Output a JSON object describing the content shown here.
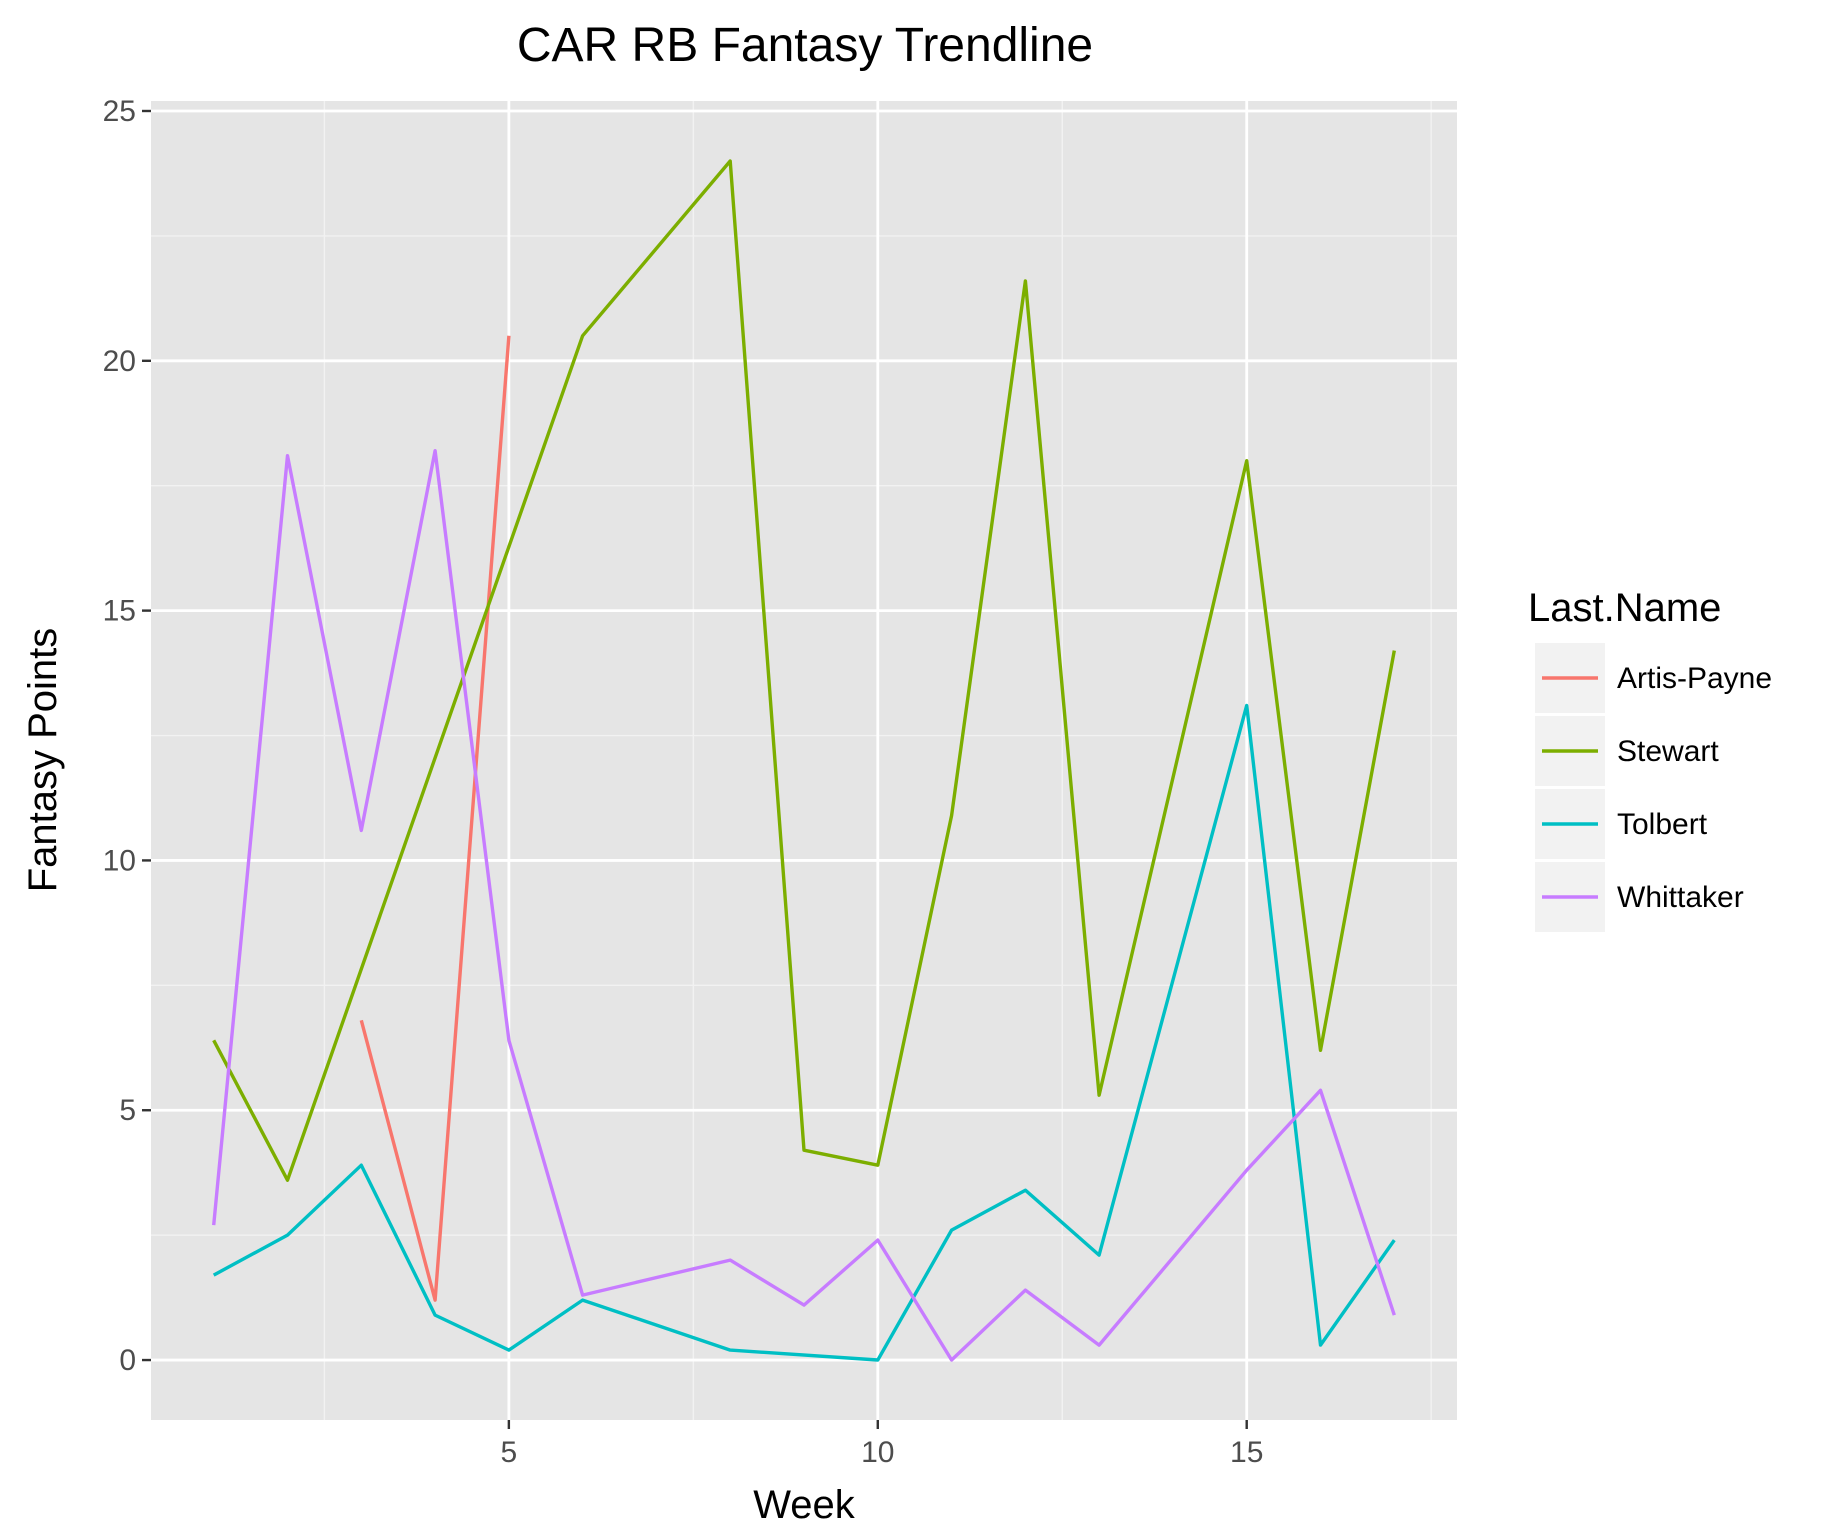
{
  "chart_data": {
    "type": "line",
    "title": "CAR RB Fantasy Trendline",
    "xlabel": "Week",
    "ylabel": "Fantasy Points",
    "xlim": [
      0.15,
      17.85
    ],
    "ylim": [
      -1.2,
      25.2
    ],
    "x_ticks": [
      5,
      10,
      15
    ],
    "x_tick_labels": [
      "5",
      "10",
      "15"
    ],
    "x_minor_grid": [
      2.5,
      7.5,
      12.5,
      17.5
    ],
    "y_ticks": [
      0,
      5,
      10,
      15,
      20,
      25
    ],
    "y_tick_labels": [
      "0",
      "5",
      "10",
      "15",
      "20",
      "25"
    ],
    "y_minor_grid": [
      2.5,
      7.5,
      12.5,
      17.5,
      22.5
    ],
    "grid": true,
    "legend": {
      "title": "Last.Name",
      "placement": "right"
    },
    "series": [
      {
        "name": "Artis-Payne",
        "color": "#F8766D",
        "points": [
          [
            3,
            6.8
          ],
          [
            4,
            1.2
          ],
          [
            5,
            20.5
          ]
        ]
      },
      {
        "name": "Stewart",
        "color": "#7CAE00",
        "points": [
          [
            1,
            6.4
          ],
          [
            2,
            3.6
          ],
          [
            6,
            20.5
          ],
          [
            8,
            24.0
          ],
          [
            9,
            4.2
          ],
          [
            10,
            3.9
          ],
          [
            11,
            10.9
          ],
          [
            12,
            21.6
          ],
          [
            13,
            5.3
          ],
          [
            15,
            18.0
          ],
          [
            16,
            6.2
          ],
          [
            17,
            14.2
          ]
        ]
      },
      {
        "name": "Tolbert",
        "color": "#00BFC4",
        "points": [
          [
            1,
            1.7
          ],
          [
            2,
            2.5
          ],
          [
            3,
            3.9
          ],
          [
            4,
            0.9
          ],
          [
            5,
            0.2
          ],
          [
            6,
            1.2
          ],
          [
            8,
            0.2
          ],
          [
            10,
            0.0
          ],
          [
            11,
            2.6
          ],
          [
            12,
            3.4
          ],
          [
            13,
            2.1
          ],
          [
            15,
            13.1
          ],
          [
            16,
            0.3
          ],
          [
            17,
            2.4
          ]
        ]
      },
      {
        "name": "Whittaker",
        "color": "#C77CFF",
        "points": [
          [
            1,
            2.7
          ],
          [
            2,
            18.1
          ],
          [
            3,
            10.6
          ],
          [
            4,
            18.2
          ],
          [
            5,
            6.4
          ],
          [
            6,
            1.3
          ],
          [
            8,
            2.0
          ],
          [
            9,
            1.1
          ],
          [
            10,
            2.4
          ],
          [
            11,
            0.0
          ],
          [
            12,
            1.4
          ],
          [
            13,
            0.3
          ],
          [
            15,
            3.8
          ],
          [
            16,
            5.4
          ],
          [
            17,
            0.9
          ]
        ]
      }
    ]
  }
}
